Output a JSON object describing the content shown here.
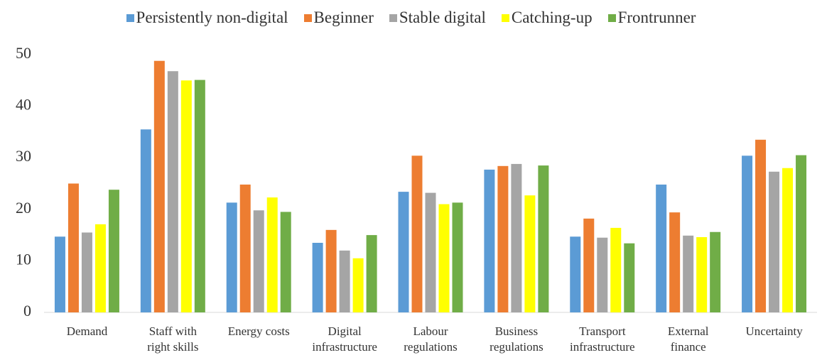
{
  "chart_data": {
    "type": "bar",
    "categories": [
      "Demand",
      "Staff with\nright skills",
      "Energy costs",
      "Digital\ninfrastructure",
      "Labour\nregulations",
      "Business\nregulations",
      "Transport\ninfrastructure",
      "External\nfinance",
      "Uncertainty"
    ],
    "series": [
      {
        "name": "Persistently non-digital",
        "color": "#5b9bd5",
        "values": [
          14.7,
          35.5,
          21.3,
          13.5,
          23.4,
          27.7,
          14.7,
          24.8,
          30.4
        ]
      },
      {
        "name": "Beginner",
        "color": "#ed7d31",
        "values": [
          25,
          48.8,
          24.8,
          16,
          30.4,
          28.4,
          18.2,
          19.4,
          33.5
        ]
      },
      {
        "name": "Stable digital",
        "color": "#a5a5a5",
        "values": [
          15.5,
          46.8,
          19.8,
          12,
          23.2,
          28.8,
          14.5,
          14.9,
          27.3
        ]
      },
      {
        "name": "Catching-up",
        "color": "#ffff00",
        "values": [
          17.1,
          45,
          22.3,
          10.5,
          21,
          22.7,
          16.4,
          14.6,
          28
        ]
      },
      {
        "name": "Frontrunner",
        "color": "#70ad47",
        "values": [
          23.8,
          45.1,
          19.5,
          15,
          21.3,
          28.5,
          13.4,
          15.6,
          30.5
        ]
      }
    ],
    "ylim": [
      0,
      50
    ],
    "yticks": [
      0,
      10,
      20,
      30,
      40,
      50
    ],
    "grid": false,
    "legend": "top"
  }
}
